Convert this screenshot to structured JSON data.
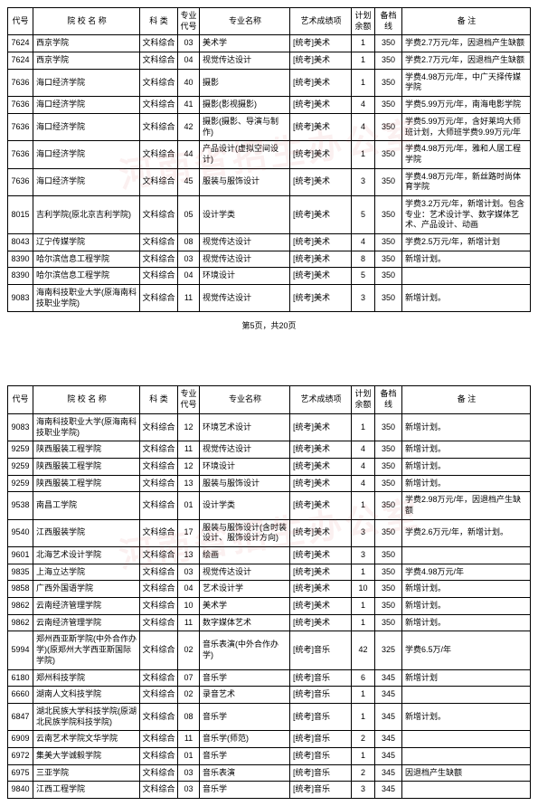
{
  "watermark_text": "河南省招生办公室",
  "pager": "第5页，共20页",
  "headers": {
    "code": "代号",
    "school": "院 校 名 称",
    "category": "科 类",
    "major_code": "专业代号",
    "major": "专业名称",
    "art": "艺术成绩项",
    "plan": "计划余额",
    "line": "备档线",
    "note": "备 注"
  },
  "table1": [
    {
      "code": "7624",
      "school": "西京学院",
      "cat": "文科综合",
      "mcode": "03",
      "major": "美术学",
      "art": "[统考]美术",
      "plan": "1",
      "line": "350",
      "note": "学费2.7万元/年，因退档产生缺额"
    },
    {
      "code": "7624",
      "school": "西京学院",
      "cat": "文科综合",
      "mcode": "04",
      "major": "视觉传达设计",
      "art": "[统考]美术",
      "plan": "1",
      "line": "350",
      "note": "学费2.7万元/年，因退档产生缺额"
    },
    {
      "code": "7636",
      "school": "海口经济学院",
      "cat": "文科综合",
      "mcode": "40",
      "major": "摄影",
      "art": "[统考]美术",
      "plan": "1",
      "line": "350",
      "note": "学费4.98万元/年，中广天择传媒学院"
    },
    {
      "code": "7636",
      "school": "海口经济学院",
      "cat": "文科综合",
      "mcode": "41",
      "major": "摄影(影视摄影)",
      "art": "[统考]美术",
      "plan": "4",
      "line": "350",
      "note": "学费5.99万元/年，南海电影学院"
    },
    {
      "code": "7636",
      "school": "海口经济学院",
      "cat": "文科综合",
      "mcode": "42",
      "major": "摄影(摄影、导演与制作)",
      "art": "[统考]美术",
      "plan": "4",
      "line": "350",
      "note": "学费5.99万元/年，含好莱坞大师班计划，大师班学费9.99万元/年"
    },
    {
      "code": "7636",
      "school": "海口经济学院",
      "cat": "文科综合",
      "mcode": "44",
      "major": "产品设计(虚拟空间设计)",
      "art": "[统考]美术",
      "plan": "1",
      "line": "350",
      "note": "学费4.98万元/年，雅和人居工程学院"
    },
    {
      "code": "7636",
      "school": "海口经济学院",
      "cat": "文科综合",
      "mcode": "45",
      "major": "服装与服饰设计",
      "art": "[统考]美术",
      "plan": "3",
      "line": "350",
      "note": "学费4.98万元/年，新丝路时尚体育学院"
    },
    {
      "code": "8015",
      "school": "吉利学院(原北京吉利学院)",
      "cat": "文科综合",
      "mcode": "05",
      "major": "设计学类",
      "art": "[统考]美术",
      "plan": "5",
      "line": "350",
      "note": "学费3.2万元/年，新增计划。包含专业：艺术设计学、数字媒体艺术、产品设计、动画"
    },
    {
      "code": "8043",
      "school": "辽宁传媒学院",
      "cat": "文科综合",
      "mcode": "08",
      "major": "视觉传达设计",
      "art": "[统考]美术",
      "plan": "4",
      "line": "350",
      "note": "学费2.5万元/年，新增计划"
    },
    {
      "code": "8390",
      "school": "哈尔滨信息工程学院",
      "cat": "文科综合",
      "mcode": "03",
      "major": "视觉传达设计",
      "art": "[统考]美术",
      "plan": "8",
      "line": "350",
      "note": "新增计划。"
    },
    {
      "code": "8390",
      "school": "哈尔滨信息工程学院",
      "cat": "文科综合",
      "mcode": "04",
      "major": "环境设计",
      "art": "[统考]美术",
      "plan": "5",
      "line": "350",
      "note": ""
    },
    {
      "code": "9083",
      "school": "海南科技职业大学(原海南科技职业学院)",
      "cat": "文科综合",
      "mcode": "11",
      "major": "视觉传达设计",
      "art": "[统考]美术",
      "plan": "3",
      "line": "350",
      "note": "新增计划。"
    }
  ],
  "table2": [
    {
      "code": "9083",
      "school": "海南科技职业大学(原海南科技职业学院)",
      "cat": "文科综合",
      "mcode": "12",
      "major": "环境艺术设计",
      "art": "[统考]美术",
      "plan": "1",
      "line": "350",
      "note": "新增计划。"
    },
    {
      "code": "9259",
      "school": "陕西服装工程学院",
      "cat": "文科综合",
      "mcode": "11",
      "major": "视觉传达设计",
      "art": "[统考]美术",
      "plan": "4",
      "line": "350",
      "note": "新增计划。"
    },
    {
      "code": "9259",
      "school": "陕西服装工程学院",
      "cat": "文科综合",
      "mcode": "12",
      "major": "环境设计",
      "art": "[统考]美术",
      "plan": "4",
      "line": "350",
      "note": "新增计划。"
    },
    {
      "code": "9259",
      "school": "陕西服装工程学院",
      "cat": "文科综合",
      "mcode": "13",
      "major": "服装与服饰设计",
      "art": "[统考]美术",
      "plan": "4",
      "line": "350",
      "note": "新增计划。"
    },
    {
      "code": "9538",
      "school": "南昌工学院",
      "cat": "文科综合",
      "mcode": "01",
      "major": "设计学类",
      "art": "[统考]美术",
      "plan": "1",
      "line": "350",
      "note": "学费2.98万元/年，因退档产生缺额"
    },
    {
      "code": "9540",
      "school": "江西服装学院",
      "cat": "文科综合",
      "mcode": "17",
      "major": "服装与服饰设计(含时装设计、服饰设计方向)",
      "art": "[统考]美术",
      "plan": "3",
      "line": "350",
      "note": "学费2.6万元/年，新增计划。"
    },
    {
      "code": "9601",
      "school": "北海艺术设计学院",
      "cat": "文科综合",
      "mcode": "13",
      "major": "绘画",
      "art": "[统考]美术",
      "plan": "3",
      "line": "350",
      "note": ""
    },
    {
      "code": "9835",
      "school": "上海立达学院",
      "cat": "文科综合",
      "mcode": "03",
      "major": "视觉传达设计",
      "art": "[统考]美术",
      "plan": "1",
      "line": "350",
      "note": "学费4.98万元/年"
    },
    {
      "code": "9858",
      "school": "广西外国语学院",
      "cat": "文科综合",
      "mcode": "04",
      "major": "艺术设计学",
      "art": "[统考]美术",
      "plan": "10",
      "line": "350",
      "note": "新增计划。"
    },
    {
      "code": "9862",
      "school": "云南经济管理学院",
      "cat": "文科综合",
      "mcode": "10",
      "major": "美术学",
      "art": "[统考]美术",
      "plan": "1",
      "line": "350",
      "note": "新增计划。"
    },
    {
      "code": "9862",
      "school": "云南经济管理学院",
      "cat": "文科综合",
      "mcode": "11",
      "major": "数字媒体艺术",
      "art": "[统考]美术",
      "plan": "1",
      "line": "350",
      "note": "新增计划。"
    },
    {
      "code": "5994",
      "school": "郑州西亚斯学院(中外合作办学)(原郑州大学西亚斯国际学院)",
      "cat": "文科综合",
      "mcode": "02",
      "major": "音乐表演(中外合作办学)",
      "art": "[统考]音乐",
      "plan": "42",
      "line": "325",
      "note": "学费6.5万/年"
    },
    {
      "code": "6180",
      "school": "郑州科技学院",
      "cat": "文科综合",
      "mcode": "07",
      "major": "音乐学",
      "art": "[统考]音乐",
      "plan": "6",
      "line": "345",
      "note": "新增计划"
    },
    {
      "code": "6660",
      "school": "湖南人文科技学院",
      "cat": "文科综合",
      "mcode": "02",
      "major": "录音艺术",
      "art": "[统考]音乐",
      "plan": "1",
      "line": "345",
      "note": ""
    },
    {
      "code": "6847",
      "school": "湖北民族大学科技学院(原湖北民族学院科技学院)",
      "cat": "文科综合",
      "mcode": "08",
      "major": "音乐学",
      "art": "[统考]音乐",
      "plan": "1",
      "line": "345",
      "note": "新增计划。"
    },
    {
      "code": "6909",
      "school": "云南艺术学院文华学院",
      "cat": "文科综合",
      "mcode": "11",
      "major": "音乐学(师范)",
      "art": "[统考]音乐",
      "plan": "2",
      "line": "345",
      "note": ""
    },
    {
      "code": "6972",
      "school": "集美大学诚毅学院",
      "cat": "文科综合",
      "mcode": "01",
      "major": "音乐学",
      "art": "[统考]音乐",
      "plan": "1",
      "line": "345",
      "note": ""
    },
    {
      "code": "6975",
      "school": "三亚学院",
      "cat": "文科综合",
      "mcode": "03",
      "major": "音乐表演",
      "art": "[统考]音乐",
      "plan": "2",
      "line": "345",
      "note": "因退档产生缺额"
    },
    {
      "code": "9840",
      "school": "江西工程学院",
      "cat": "文科综合",
      "mcode": "03",
      "major": "音乐学",
      "art": "[统考]音乐",
      "plan": "3",
      "line": "345",
      "note": ""
    }
  ]
}
